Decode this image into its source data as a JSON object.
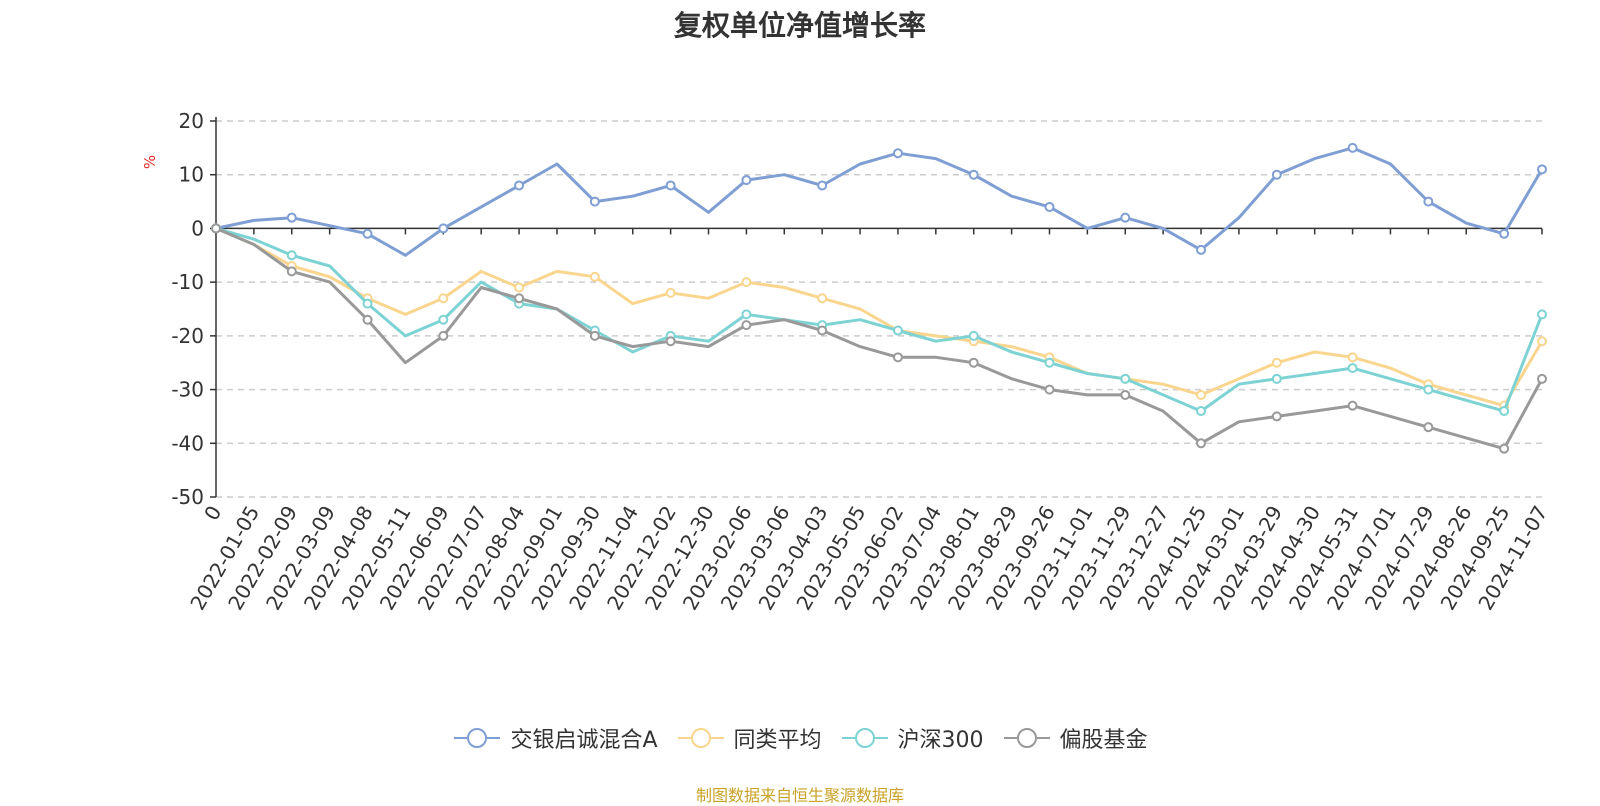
{
  "title": "复权单位净值增长率",
  "source_note": "制图数据来自恒生聚源数据库",
  "chart_data": {
    "type": "line",
    "ylabel": "%",
    "ylim": [
      -50,
      20
    ],
    "yticks": [
      20,
      10,
      0,
      -10,
      -20,
      -30,
      -40,
      -50
    ],
    "grid": true,
    "legend_position": "bottom",
    "categories": [
      "0",
      "2022-01-05",
      "2022-02-09",
      "2022-03-09",
      "2022-04-08",
      "2022-05-11",
      "2022-06-09",
      "2022-07-07",
      "2022-08-04",
      "2022-09-01",
      "2022-09-30",
      "2022-11-04",
      "2022-12-02",
      "2022-12-30",
      "2023-02-06",
      "2023-03-06",
      "2023-04-03",
      "2023-05-05",
      "2023-06-02",
      "2023-07-04",
      "2023-08-01",
      "2023-08-29",
      "2023-09-26",
      "2023-11-01",
      "2023-11-29",
      "2023-12-27",
      "2024-01-25",
      "2024-03-01",
      "2024-03-29",
      "2024-04-30",
      "2024-05-31",
      "2024-07-01",
      "2024-07-29",
      "2024-08-26",
      "2024-09-25",
      "2024-11-07"
    ],
    "series": [
      {
        "name": "交银启诚混合A",
        "color": "#7f9fd4",
        "values": [
          0,
          1.5,
          2,
          0.5,
          -1,
          -5,
          0,
          4,
          8,
          12,
          5,
          6,
          8,
          3,
          9,
          10,
          8,
          12,
          14,
          13,
          10,
          6,
          4,
          0,
          2,
          0,
          -4,
          2,
          10,
          13,
          15,
          12,
          5,
          1,
          -1,
          11
        ]
      },
      {
        "name": "同类平均",
        "color": "#f9d58e",
        "values": [
          0,
          -3,
          -7,
          -9,
          -13,
          -16,
          -13,
          -8,
          -11,
          -8,
          -9,
          -14,
          -12,
          -13,
          -10,
          -11,
          -13,
          -15,
          -19,
          -20,
          -21,
          -22,
          -24,
          -27,
          -28,
          -29,
          -31,
          -28,
          -25,
          -23,
          -24,
          -26,
          -29,
          -31,
          -33,
          -21
        ]
      },
      {
        "name": "沪深300",
        "color": "#7dd3d4",
        "values": [
          0,
          -2,
          -5,
          -7,
          -14,
          -20,
          -17,
          -10,
          -14,
          -15,
          -19,
          -23,
          -20,
          -21,
          -16,
          -17,
          -18,
          -17,
          -19,
          -21,
          -20,
          -23,
          -25,
          -27,
          -28,
          -31,
          -34,
          -29,
          -28,
          -27,
          -26,
          -28,
          -30,
          -32,
          -34,
          -16
        ]
      },
      {
        "name": "偏股基金",
        "color": "#999999",
        "values": [
          0,
          -3,
          -8,
          -10,
          -17,
          -25,
          -20,
          -11,
          -13,
          -15,
          -20,
          -22,
          -21,
          -22,
          -18,
          -17,
          -19,
          -22,
          -24,
          -24,
          -25,
          -28,
          -30,
          -31,
          -31,
          -34,
          -40,
          -36,
          -35,
          -34,
          -33,
          -35,
          -37,
          -39,
          -41,
          -28
        ]
      }
    ]
  }
}
